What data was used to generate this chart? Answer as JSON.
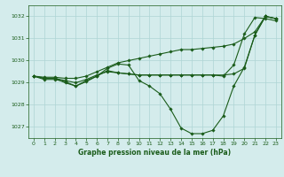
{
  "background_color": "#d4ecec",
  "grid_color": "#aed4d4",
  "line_color": "#1a5c1a",
  "marker_color": "#1a5c1a",
  "title": "Graphe pression niveau de la mer (hPa)",
  "xlim": [
    -0.5,
    23.5
  ],
  "ylim": [
    1026.5,
    1032.5
  ],
  "yticks": [
    1027,
    1028,
    1029,
    1030,
    1031,
    1032
  ],
  "xticks": [
    0,
    1,
    2,
    3,
    4,
    5,
    6,
    7,
    8,
    9,
    10,
    11,
    12,
    13,
    14,
    15,
    16,
    17,
    18,
    19,
    20,
    21,
    22,
    23
  ],
  "series": [
    {
      "x": [
        0,
        1,
        2,
        3,
        4,
        5,
        6,
        7,
        8,
        9,
        10,
        11,
        12,
        13,
        14,
        15,
        16,
        17,
        18,
        19,
        20,
        21,
        22,
        23
      ],
      "y": [
        1029.3,
        1029.2,
        1029.2,
        1029.0,
        1028.85,
        1029.1,
        1029.3,
        1029.65,
        1029.85,
        1029.8,
        1029.1,
        1028.85,
        1028.5,
        1027.8,
        1026.95,
        1026.7,
        1026.7,
        1026.85,
        1027.5,
        1028.85,
        1029.7,
        1031.15,
        1032.0,
        1031.9
      ]
    },
    {
      "x": [
        0,
        1,
        2,
        3,
        4,
        5,
        6,
        7,
        8,
        9,
        10,
        11,
        12,
        13,
        14,
        15,
        16,
        17,
        18,
        19,
        20,
        21,
        22,
        23
      ],
      "y": [
        1029.3,
        1029.25,
        1029.25,
        1029.2,
        1029.2,
        1029.3,
        1029.5,
        1029.7,
        1029.9,
        1030.0,
        1030.1,
        1030.2,
        1030.3,
        1030.4,
        1030.5,
        1030.5,
        1030.55,
        1030.6,
        1030.65,
        1030.75,
        1031.0,
        1031.3,
        1032.0,
        1031.9
      ]
    },
    {
      "x": [
        0,
        1,
        2,
        3,
        4,
        5,
        6,
        7,
        8,
        9,
        10,
        11,
        12,
        13,
        14,
        15,
        16,
        17,
        18,
        19,
        20,
        21,
        22,
        23
      ],
      "y": [
        1029.3,
        1029.2,
        1029.2,
        1029.1,
        1029.0,
        1029.15,
        1029.35,
        1029.5,
        1029.45,
        1029.4,
        1029.35,
        1029.35,
        1029.35,
        1029.35,
        1029.35,
        1029.35,
        1029.35,
        1029.35,
        1029.35,
        1029.4,
        1029.65,
        1031.15,
        1032.0,
        1031.9
      ]
    },
    {
      "x": [
        0,
        1,
        2,
        3,
        4,
        5,
        6,
        7,
        8,
        9,
        10,
        11,
        12,
        13,
        14,
        15,
        16,
        17,
        18,
        19,
        20,
        21,
        22,
        23
      ],
      "y": [
        1029.3,
        1029.15,
        1029.15,
        1029.05,
        1028.85,
        1029.05,
        1029.3,
        1029.55,
        1029.45,
        1029.4,
        1029.35,
        1029.35,
        1029.35,
        1029.35,
        1029.35,
        1029.35,
        1029.35,
        1029.35,
        1029.3,
        1029.8,
        1031.2,
        1031.95,
        1031.9,
        1031.8
      ]
    }
  ]
}
